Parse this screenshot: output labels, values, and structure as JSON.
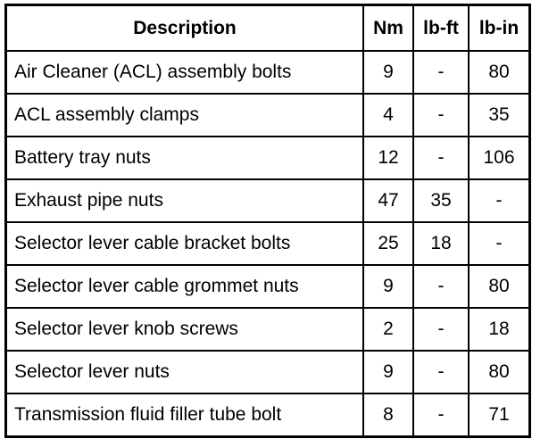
{
  "table": {
    "headers": [
      "Description",
      "Nm",
      "lb-ft",
      "lb-in"
    ],
    "rows": [
      [
        "Air Cleaner (ACL) assembly bolts",
        "9",
        "-",
        "80"
      ],
      [
        "ACL assembly clamps",
        "4",
        "-",
        "35"
      ],
      [
        "Battery tray nuts",
        "12",
        "-",
        "106"
      ],
      [
        "Exhaust pipe nuts",
        "47",
        "35",
        "-"
      ],
      [
        "Selector lever cable bracket bolts",
        "25",
        "18",
        "-"
      ],
      [
        "Selector lever cable grommet nuts",
        "9",
        "-",
        "80"
      ],
      [
        "Selector lever knob screws",
        "2",
        "-",
        "18"
      ],
      [
        "Selector lever nuts",
        "9",
        "-",
        "80"
      ],
      [
        "Transmission fluid filler tube bolt",
        "8",
        "-",
        "71"
      ]
    ]
  }
}
